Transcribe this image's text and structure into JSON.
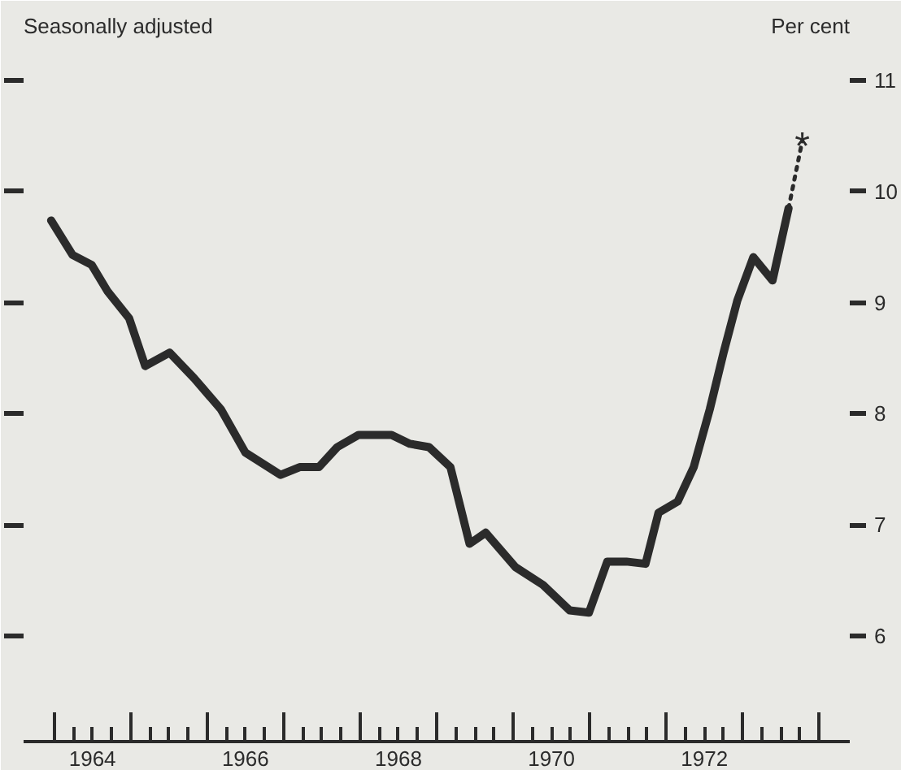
{
  "chart_data": {
    "type": "line",
    "subtitle": "Seasonally adjusted",
    "ylabel": "Per cent",
    "xlim": [
      1963.6,
      1974.4
    ],
    "ylim": [
      5.05,
      11.6
    ],
    "yticks": [
      6,
      7,
      8,
      9,
      10,
      11
    ],
    "xticks": [
      {
        "value": 1964,
        "label": null
      },
      {
        "value": 1964.25,
        "label": null
      },
      {
        "value": 1964.5,
        "label": "1964"
      },
      {
        "value": 1964.75,
        "label": null
      },
      {
        "value": 1965,
        "label": null
      },
      {
        "value": 1965.25,
        "label": null
      },
      {
        "value": 1965.5,
        "label": null
      },
      {
        "value": 1965.75,
        "label": null
      },
      {
        "value": 1966,
        "label": null
      },
      {
        "value": 1966.25,
        "label": null
      },
      {
        "value": 1966.5,
        "label": "1966"
      },
      {
        "value": 1966.75,
        "label": null
      },
      {
        "value": 1967,
        "label": null
      },
      {
        "value": 1967.25,
        "label": null
      },
      {
        "value": 1967.5,
        "label": null
      },
      {
        "value": 1967.75,
        "label": null
      },
      {
        "value": 1968,
        "label": null
      },
      {
        "value": 1968.25,
        "label": null
      },
      {
        "value": 1968.5,
        "label": "1968"
      },
      {
        "value": 1968.75,
        "label": null
      },
      {
        "value": 1969,
        "label": null
      },
      {
        "value": 1969.25,
        "label": null
      },
      {
        "value": 1969.5,
        "label": null
      },
      {
        "value": 1969.75,
        "label": null
      },
      {
        "value": 1970,
        "label": null
      },
      {
        "value": 1970.25,
        "label": null
      },
      {
        "value": 1970.5,
        "label": "1970"
      },
      {
        "value": 1970.75,
        "label": null
      },
      {
        "value": 1971,
        "label": null
      },
      {
        "value": 1971.25,
        "label": null
      },
      {
        "value": 1971.5,
        "label": null
      },
      {
        "value": 1971.75,
        "label": null
      },
      {
        "value": 1972,
        "label": null
      },
      {
        "value": 1972.25,
        "label": null
      },
      {
        "value": 1972.5,
        "label": "1972"
      },
      {
        "value": 1972.75,
        "label": null
      },
      {
        "value": 1973,
        "label": null
      },
      {
        "value": 1973.25,
        "label": null
      },
      {
        "value": 1973.5,
        "label": null
      },
      {
        "value": 1973.75,
        "label": null
      },
      {
        "value": 1974,
        "label": null
      }
    ],
    "marker": "none",
    "series": [
      {
        "color": "#2b2b2b",
        "line_style": "solid",
        "x": [
          1963.96,
          1964.24,
          1964.49,
          1964.7,
          1964.98,
          1965.19,
          1965.51,
          1965.83,
          1966.18,
          1966.5,
          1966.96,
          1967.21,
          1967.46,
          1967.7,
          1967.98,
          1968.41,
          1968.65,
          1968.9,
          1969.18,
          1969.43,
          1969.64,
          1970.03,
          1970.39,
          1970.74,
          1970.99,
          1971.23,
          1971.48,
          1971.73,
          1971.9,
          1972.15,
          1972.36,
          1972.57,
          1972.75,
          1972.93,
          1973.14,
          1973.39,
          1973.6
        ],
        "values": [
          9.74,
          9.43,
          9.34,
          9.1,
          8.86,
          8.43,
          8.55,
          8.32,
          8.04,
          7.65,
          7.45,
          7.52,
          7.52,
          7.7,
          7.81,
          7.81,
          7.73,
          7.7,
          7.52,
          6.83,
          6.93,
          6.62,
          6.46,
          6.23,
          6.21,
          6.67,
          6.67,
          6.65,
          7.11,
          7.21,
          7.52,
          8.04,
          8.55,
          9.02,
          9.41,
          9.2,
          9.85
        ]
      },
      {
        "color": "#2b2b2b",
        "line_style": "dotted",
        "x": [
          1973.6,
          1973.78
        ],
        "values": [
          9.85,
          10.46
        ]
      }
    ],
    "annotations": [
      {
        "text": "*",
        "x": 1973.78,
        "y": 10.46
      }
    ]
  }
}
